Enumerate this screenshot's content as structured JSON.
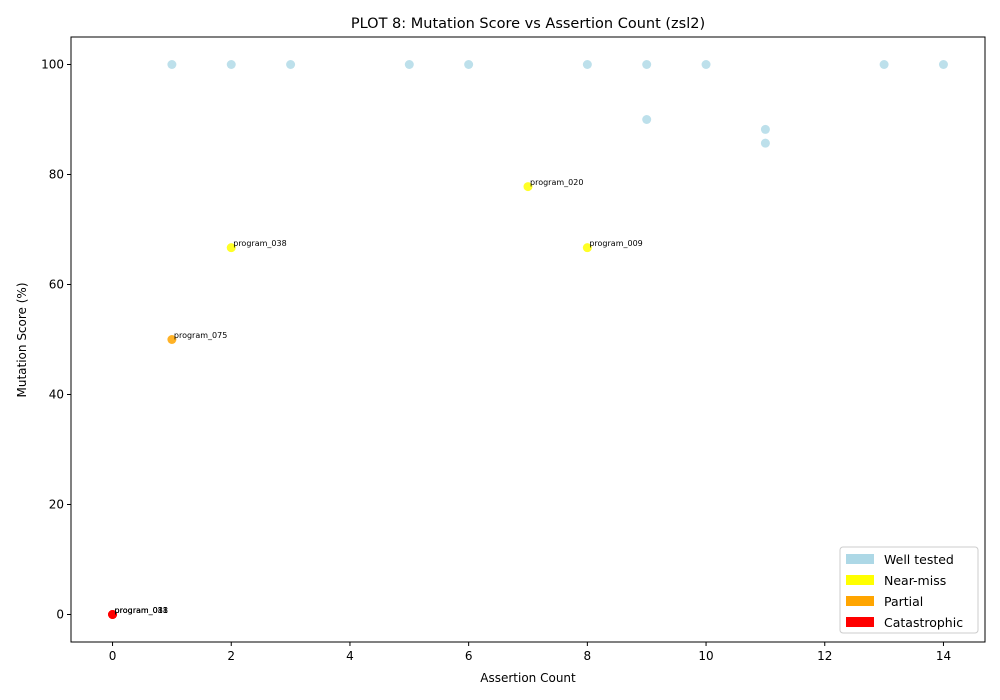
{
  "chart_data": {
    "type": "scatter",
    "title": "PLOT 8: Mutation Score vs Assertion Count (zsl2)",
    "xlabel": "Assertion Count",
    "ylabel": "Mutation Score (%)",
    "xlim": [
      -0.7,
      14.7
    ],
    "ylim": [
      -5,
      105
    ],
    "xticks": [
      0,
      2,
      4,
      6,
      8,
      10,
      12,
      14
    ],
    "yticks": [
      0,
      20,
      40,
      60,
      80,
      100
    ],
    "grid": false,
    "legend_position": "bottom-right",
    "categories": [
      {
        "key": "well",
        "name": "Well tested",
        "color": "#add8e6"
      },
      {
        "key": "near",
        "name": "Near-miss",
        "color": "#ffff00"
      },
      {
        "key": "partial",
        "name": "Partial",
        "color": "#ffa500"
      },
      {
        "key": "cat",
        "name": "Catastrophic",
        "color": "#ff0000"
      }
    ],
    "points": [
      {
        "x": 1,
        "y": 100,
        "cat": "well"
      },
      {
        "x": 2,
        "y": 100,
        "cat": "well"
      },
      {
        "x": 3,
        "y": 100,
        "cat": "well"
      },
      {
        "x": 5,
        "y": 100,
        "cat": "well"
      },
      {
        "x": 6,
        "y": 100,
        "cat": "well"
      },
      {
        "x": 8,
        "y": 100,
        "cat": "well"
      },
      {
        "x": 9,
        "y": 100,
        "cat": "well"
      },
      {
        "x": 10,
        "y": 100,
        "cat": "well"
      },
      {
        "x": 13,
        "y": 100,
        "cat": "well"
      },
      {
        "x": 14,
        "y": 100,
        "cat": "well"
      },
      {
        "x": 9,
        "y": 90,
        "cat": "well"
      },
      {
        "x": 11,
        "y": 88.2,
        "cat": "well"
      },
      {
        "x": 11,
        "y": 85.7,
        "cat": "well"
      },
      {
        "x": 7,
        "y": 77.8,
        "cat": "near",
        "label": "program_020"
      },
      {
        "x": 2,
        "y": 66.7,
        "cat": "near",
        "label": "program_038"
      },
      {
        "x": 8,
        "y": 66.7,
        "cat": "near",
        "label": "program_009"
      },
      {
        "x": 1,
        "y": 50,
        "cat": "partial",
        "label": "program_075"
      },
      {
        "x": 0,
        "y": 0,
        "cat": "cat",
        "label": "program_011"
      },
      {
        "x": 0,
        "y": 0,
        "cat": "cat",
        "label": "program_033"
      },
      {
        "x": 0,
        "y": 0,
        "cat": "cat",
        "label": "program_088"
      }
    ]
  }
}
